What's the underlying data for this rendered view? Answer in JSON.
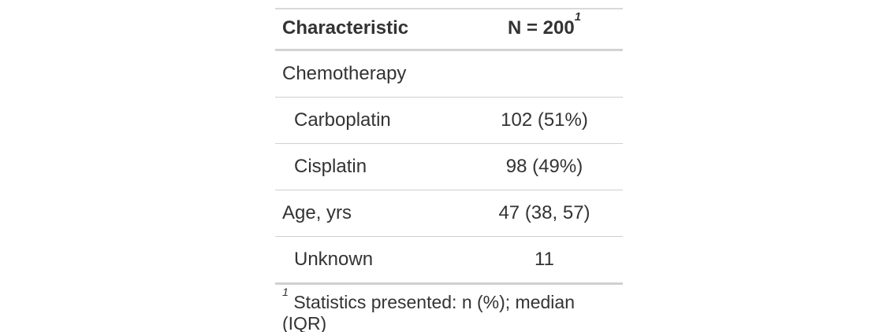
{
  "chart_data": {
    "type": "table",
    "header": {
      "label": "Characteristic",
      "value": "N = 200",
      "value_footnote_mark": "1"
    },
    "rows": [
      {
        "label": "Chemotherapy",
        "value": "",
        "indent": 0
      },
      {
        "label": "Carboplatin",
        "value": "102 (51%)",
        "indent": 1
      },
      {
        "label": "Cisplatin",
        "value": "98 (49%)",
        "indent": 1
      },
      {
        "label": "Age, yrs",
        "value": "47 (38, 57)",
        "indent": 0
      },
      {
        "label": "Unknown",
        "value": "11",
        "indent": 1
      }
    ],
    "footnote": {
      "mark": "1",
      "text": "Statistics presented: n (%); median (IQR)"
    },
    "layout": {
      "grid": "horizontal-rules-only",
      "value_alignment": "center",
      "label_alignment": "left"
    },
    "colors": {
      "text": "#333333",
      "rule_strong": "#d3d3d3",
      "rule_light": "#cfcfcf",
      "rule_bottom": "#b5b5b5",
      "background": "#ffffff"
    }
  }
}
